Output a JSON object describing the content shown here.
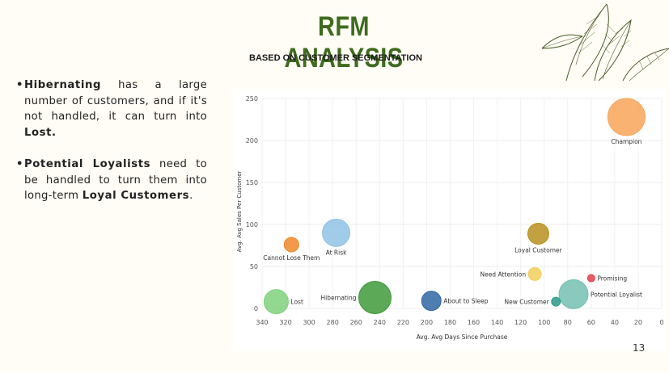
{
  "slide": {
    "title": "RFM ANALYSIS",
    "subtitle": "BASED ON CUSTOMER SEGMENTATION",
    "page_number": "13"
  },
  "bullets": [
    {
      "bold1": "Hibernating",
      "text1": " has a large number of customers, and if it's not handled, it can turn into ",
      "bold2": "Lost.",
      "text2": ""
    },
    {
      "bold1": "Potential Loyalists",
      "text1": " need to be handled to turn them into long-term ",
      "bold2": "Loyal Customers",
      "text2": "."
    }
  ],
  "chart_data": {
    "type": "scatter",
    "xlabel": "Avg. Avg Days Since Purchase",
    "ylabel": "Avg. Avg Sales Per Customer",
    "x_reversed": true,
    "xlim": [
      0,
      340
    ],
    "ylim": [
      0,
      250
    ],
    "xticks": [
      340,
      320,
      300,
      280,
      260,
      240,
      220,
      200,
      180,
      160,
      140,
      120,
      100,
      80,
      60,
      40,
      20,
      0
    ],
    "yticks": [
      0,
      50,
      100,
      150,
      200,
      250
    ],
    "grid": true,
    "points": [
      {
        "label": "Champion",
        "x": 30,
        "y": 228,
        "size": 23,
        "color": "#f9a55a",
        "label_pos": "below"
      },
      {
        "label": "At Risk",
        "x": 277,
        "y": 90,
        "size": 17,
        "color": "#8fc3e6",
        "label_pos": "below"
      },
      {
        "label": "Cannot Lose Them",
        "x": 315,
        "y": 76,
        "size": 9,
        "color": "#f0872a",
        "label_pos": "below"
      },
      {
        "label": "Loyal Customer",
        "x": 105,
        "y": 89,
        "size": 13,
        "color": "#b8901e",
        "label_pos": "below"
      },
      {
        "label": "Need Attention",
        "x": 108,
        "y": 41,
        "size": 8,
        "color": "#f2cf5b",
        "label_pos": "left"
      },
      {
        "label": "Promising",
        "x": 60,
        "y": 36,
        "size": 4.5,
        "color": "#e0404a",
        "label_pos": "right"
      },
      {
        "label": "Potential Loyalist",
        "x": 75,
        "y": 17,
        "size": 18,
        "color": "#76bfb2",
        "label_pos": "right"
      },
      {
        "label": "New Customer",
        "x": 90,
        "y": 8,
        "size": 5.5,
        "color": "#2c9a8a",
        "label_pos": "left"
      },
      {
        "label": "About to Sleep",
        "x": 196,
        "y": 9,
        "size": 12,
        "color": "#2f66a3",
        "label_pos": "right"
      },
      {
        "label": "Hibernating",
        "x": 244,
        "y": 13,
        "size": 20,
        "color": "#3f9a3a",
        "label_pos": "left"
      },
      {
        "label": "Lost",
        "x": 328,
        "y": 8,
        "size": 15,
        "color": "#7fd17c",
        "label_pos": "right"
      }
    ]
  }
}
